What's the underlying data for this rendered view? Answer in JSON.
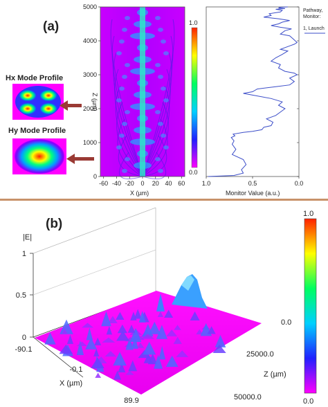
{
  "panel_a": {
    "label": "(a)",
    "hx_title": "Hx Mode Profile",
    "hy_title": "Hy Mode Profile",
    "beam_plot": {
      "xlabel": "X (µm)",
      "ylabel": "Z (µm)",
      "x_ticks": [
        "-60",
        "-40",
        "-20",
        "0",
        "20",
        "40",
        "60"
      ],
      "y_ticks": [
        "0",
        "1000",
        "2000",
        "3000",
        "4000",
        "5000"
      ],
      "colorbar_ticks": [
        "1.0",
        "0.0"
      ]
    },
    "monitor_plot": {
      "xlabel": "Monitor Value (a.u.)",
      "x_ticks": [
        "1.0",
        "0.5",
        "0.0"
      ],
      "legend_title_1": "Pathway,",
      "legend_title_2": "Monitor:",
      "legend_entry": "1, Launch"
    }
  },
  "panel_b": {
    "label": "(b)",
    "zlabel": "|E|",
    "z_ticks": [
      "1",
      "0.5",
      "0"
    ],
    "x_ticks": [
      "-90.1",
      "-0.1",
      "89.9"
    ],
    "y_ticks": [
      "0.0",
      "25000.0",
      "50000.0"
    ],
    "xlabel": "X (µm)",
    "ylabel": "Z (µm)",
    "colorbar_ticks": [
      "1.0",
      "0.0"
    ]
  },
  "chart_data": [
    {
      "type": "heatmap",
      "title": "",
      "xlabel": "X (µm)",
      "ylabel": "Z (µm)",
      "xlim": [
        -65,
        65
      ],
      "ylim": [
        0,
        5000
      ],
      "colorbar": [
        0.0,
        1.0
      ]
    },
    {
      "type": "line",
      "xlabel": "Monitor Value (a.u.)",
      "xlim": [
        1.0,
        0.0
      ],
      "ylim": [
        0,
        5000
      ],
      "series": [
        {
          "name": "1, Launch",
          "x": [
            0.98,
            0.7,
            0.6,
            0.62,
            0.57,
            0.6,
            0.72,
            0.68,
            0.72,
            0.7,
            0.73,
            0.69,
            0.71,
            0.6,
            0.5,
            0.4,
            0.38,
            0.3,
            0.28,
            0.35,
            0.25,
            0.2,
            0.15,
            0.22,
            0.18,
            0.3,
            0.5,
            0.6,
            0.5,
            0.45,
            0.25,
            0.1,
            0.05,
            0.1,
            0.02,
            0.05,
            0.15,
            0.22,
            0.2,
            0.3,
            0.25,
            0.18,
            0.12,
            0.2,
            0.1,
            0.05,
            0.02,
            0.06,
            0.1,
            0.2,
            0.15,
            0.08,
            0.2,
            0.3,
            0.22,
            0.18,
            0.1,
            0.22,
            0.38,
            0.3,
            0.32,
            0.2,
            0.18,
            0.25,
            0.15,
            0.22,
            0.2,
            0.12
          ],
          "y": [
            0,
            30,
            100,
            200,
            350,
            500,
            650,
            800,
            950,
            1050,
            1150,
            1200,
            1250,
            1300,
            1330,
            1380,
            1450,
            1500,
            1600,
            1700,
            1800,
            1900,
            2000,
            2100,
            2200,
            2300,
            2400,
            2450,
            2500,
            2580,
            2650,
            2700,
            2800,
            2900,
            3000,
            3050,
            3100,
            3200,
            3300,
            3400,
            3500,
            3600,
            3700,
            3750,
            3850,
            3900,
            3950,
            4050,
            4150,
            4200,
            4300,
            4350,
            4400,
            4450,
            4500,
            4550,
            4600,
            4650,
            4700,
            4750,
            4800,
            4850,
            4900,
            4930,
            4950,
            4970,
            4990,
            5000
          ]
        }
      ]
    },
    {
      "type": "area",
      "xlabel": "X (µm)",
      "ylabel": "Z (µm)",
      "zlabel": "|E|",
      "xlim": [
        -90.1,
        89.9
      ],
      "ylim": [
        0.0,
        50000.0
      ],
      "zlim": [
        0,
        1
      ],
      "colorbar": [
        0.0,
        1.0
      ]
    }
  ]
}
